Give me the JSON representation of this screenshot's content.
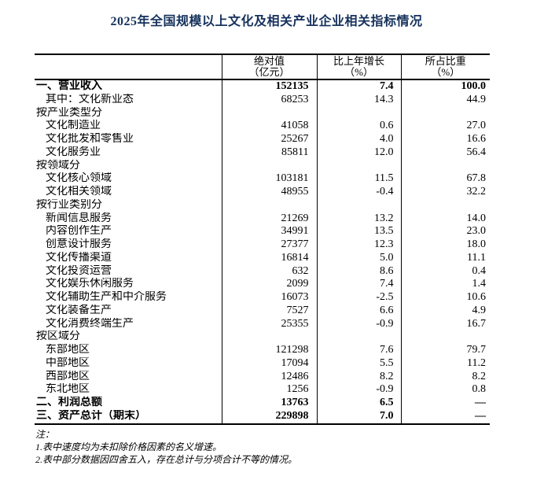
{
  "title": "2025年全国规模以上文化及相关产业企业相关指标情况",
  "table": {
    "headers": [
      {
        "line1": "绝对值",
        "line2": "（亿元）"
      },
      {
        "line1": "比上年增长",
        "line2": "（%）"
      },
      {
        "line1": "所占比重",
        "line2": "（%）"
      }
    ],
    "rows": [
      {
        "label": "一、营业收入",
        "indent": 0,
        "bold": true,
        "abs": "152135",
        "growth": "7.4",
        "share": "100.0"
      },
      {
        "label": "其中：文化新业态",
        "indent": 1,
        "bold": false,
        "abs": "68253",
        "growth": "14.3",
        "share": "44.9"
      },
      {
        "label": "按产业类型分",
        "indent": 0,
        "bold": false,
        "abs": "",
        "growth": "",
        "share": ""
      },
      {
        "label": "文化制造业",
        "indent": 1,
        "bold": false,
        "abs": "41058",
        "growth": "0.6",
        "share": "27.0"
      },
      {
        "label": "文化批发和零售业",
        "indent": 1,
        "bold": false,
        "abs": "25267",
        "growth": "4.0",
        "share": "16.6"
      },
      {
        "label": "文化服务业",
        "indent": 1,
        "bold": false,
        "abs": "85811",
        "growth": "12.0",
        "share": "56.4"
      },
      {
        "label": "按领域分",
        "indent": 0,
        "bold": false,
        "abs": "",
        "growth": "",
        "share": ""
      },
      {
        "label": "文化核心领域",
        "indent": 1,
        "bold": false,
        "abs": "103181",
        "growth": "11.5",
        "share": "67.8"
      },
      {
        "label": "文化相关领域",
        "indent": 1,
        "bold": false,
        "abs": "48955",
        "growth": "-0.4",
        "share": "32.2"
      },
      {
        "label": "按行业类别分",
        "indent": 0,
        "bold": false,
        "abs": "",
        "growth": "",
        "share": ""
      },
      {
        "label": "新闻信息服务",
        "indent": 1,
        "bold": false,
        "abs": "21269",
        "growth": "13.2",
        "share": "14.0"
      },
      {
        "label": "内容创作生产",
        "indent": 1,
        "bold": false,
        "abs": "34991",
        "growth": "13.5",
        "share": "23.0"
      },
      {
        "label": "创意设计服务",
        "indent": 1,
        "bold": false,
        "abs": "27377",
        "growth": "12.3",
        "share": "18.0"
      },
      {
        "label": "文化传播渠道",
        "indent": 1,
        "bold": false,
        "abs": "16814",
        "growth": "5.0",
        "share": "11.1"
      },
      {
        "label": "文化投资运营",
        "indent": 1,
        "bold": false,
        "abs": "632",
        "growth": "8.6",
        "share": "0.4"
      },
      {
        "label": "文化娱乐休闲服务",
        "indent": 1,
        "bold": false,
        "abs": "2099",
        "growth": "7.4",
        "share": "1.4"
      },
      {
        "label": "文化辅助生产和中介服务",
        "indent": 1,
        "bold": false,
        "abs": "16073",
        "growth": "-2.5",
        "share": "10.6"
      },
      {
        "label": "文化装备生产",
        "indent": 1,
        "bold": false,
        "abs": "7527",
        "growth": "6.6",
        "share": "4.9"
      },
      {
        "label": "文化消费终端生产",
        "indent": 1,
        "bold": false,
        "abs": "25355",
        "growth": "-0.9",
        "share": "16.7"
      },
      {
        "label": "按区域分",
        "indent": 0,
        "bold": false,
        "abs": "",
        "growth": "",
        "share": ""
      },
      {
        "label": "东部地区",
        "indent": 1,
        "bold": false,
        "abs": "121298",
        "growth": "7.6",
        "share": "79.7"
      },
      {
        "label": "中部地区",
        "indent": 1,
        "bold": false,
        "abs": "17094",
        "growth": "5.5",
        "share": "11.2"
      },
      {
        "label": "西部地区",
        "indent": 1,
        "bold": false,
        "abs": "12486",
        "growth": "8.2",
        "share": "8.2"
      },
      {
        "label": "东北地区",
        "indent": 1,
        "bold": false,
        "abs": "1256",
        "growth": "-0.9",
        "share": "0.8"
      },
      {
        "label": "二、利润总额",
        "indent": 0,
        "bold": true,
        "abs": "13763",
        "growth": "6.5",
        "share": "—"
      },
      {
        "label": "三、资产总计（期末）",
        "indent": 0,
        "bold": true,
        "abs": "229898",
        "growth": "7.0",
        "share": "—"
      }
    ]
  },
  "notes": {
    "label": "注：",
    "items": [
      "1.表中速度均为未扣除价格因素的名义增速。",
      "2.表中部分数据因四舍五入，存在总计与分项合计不等的情况。"
    ]
  },
  "colors": {
    "title_color": "#16315c",
    "text_color": "#000000",
    "border_color": "#000000"
  }
}
